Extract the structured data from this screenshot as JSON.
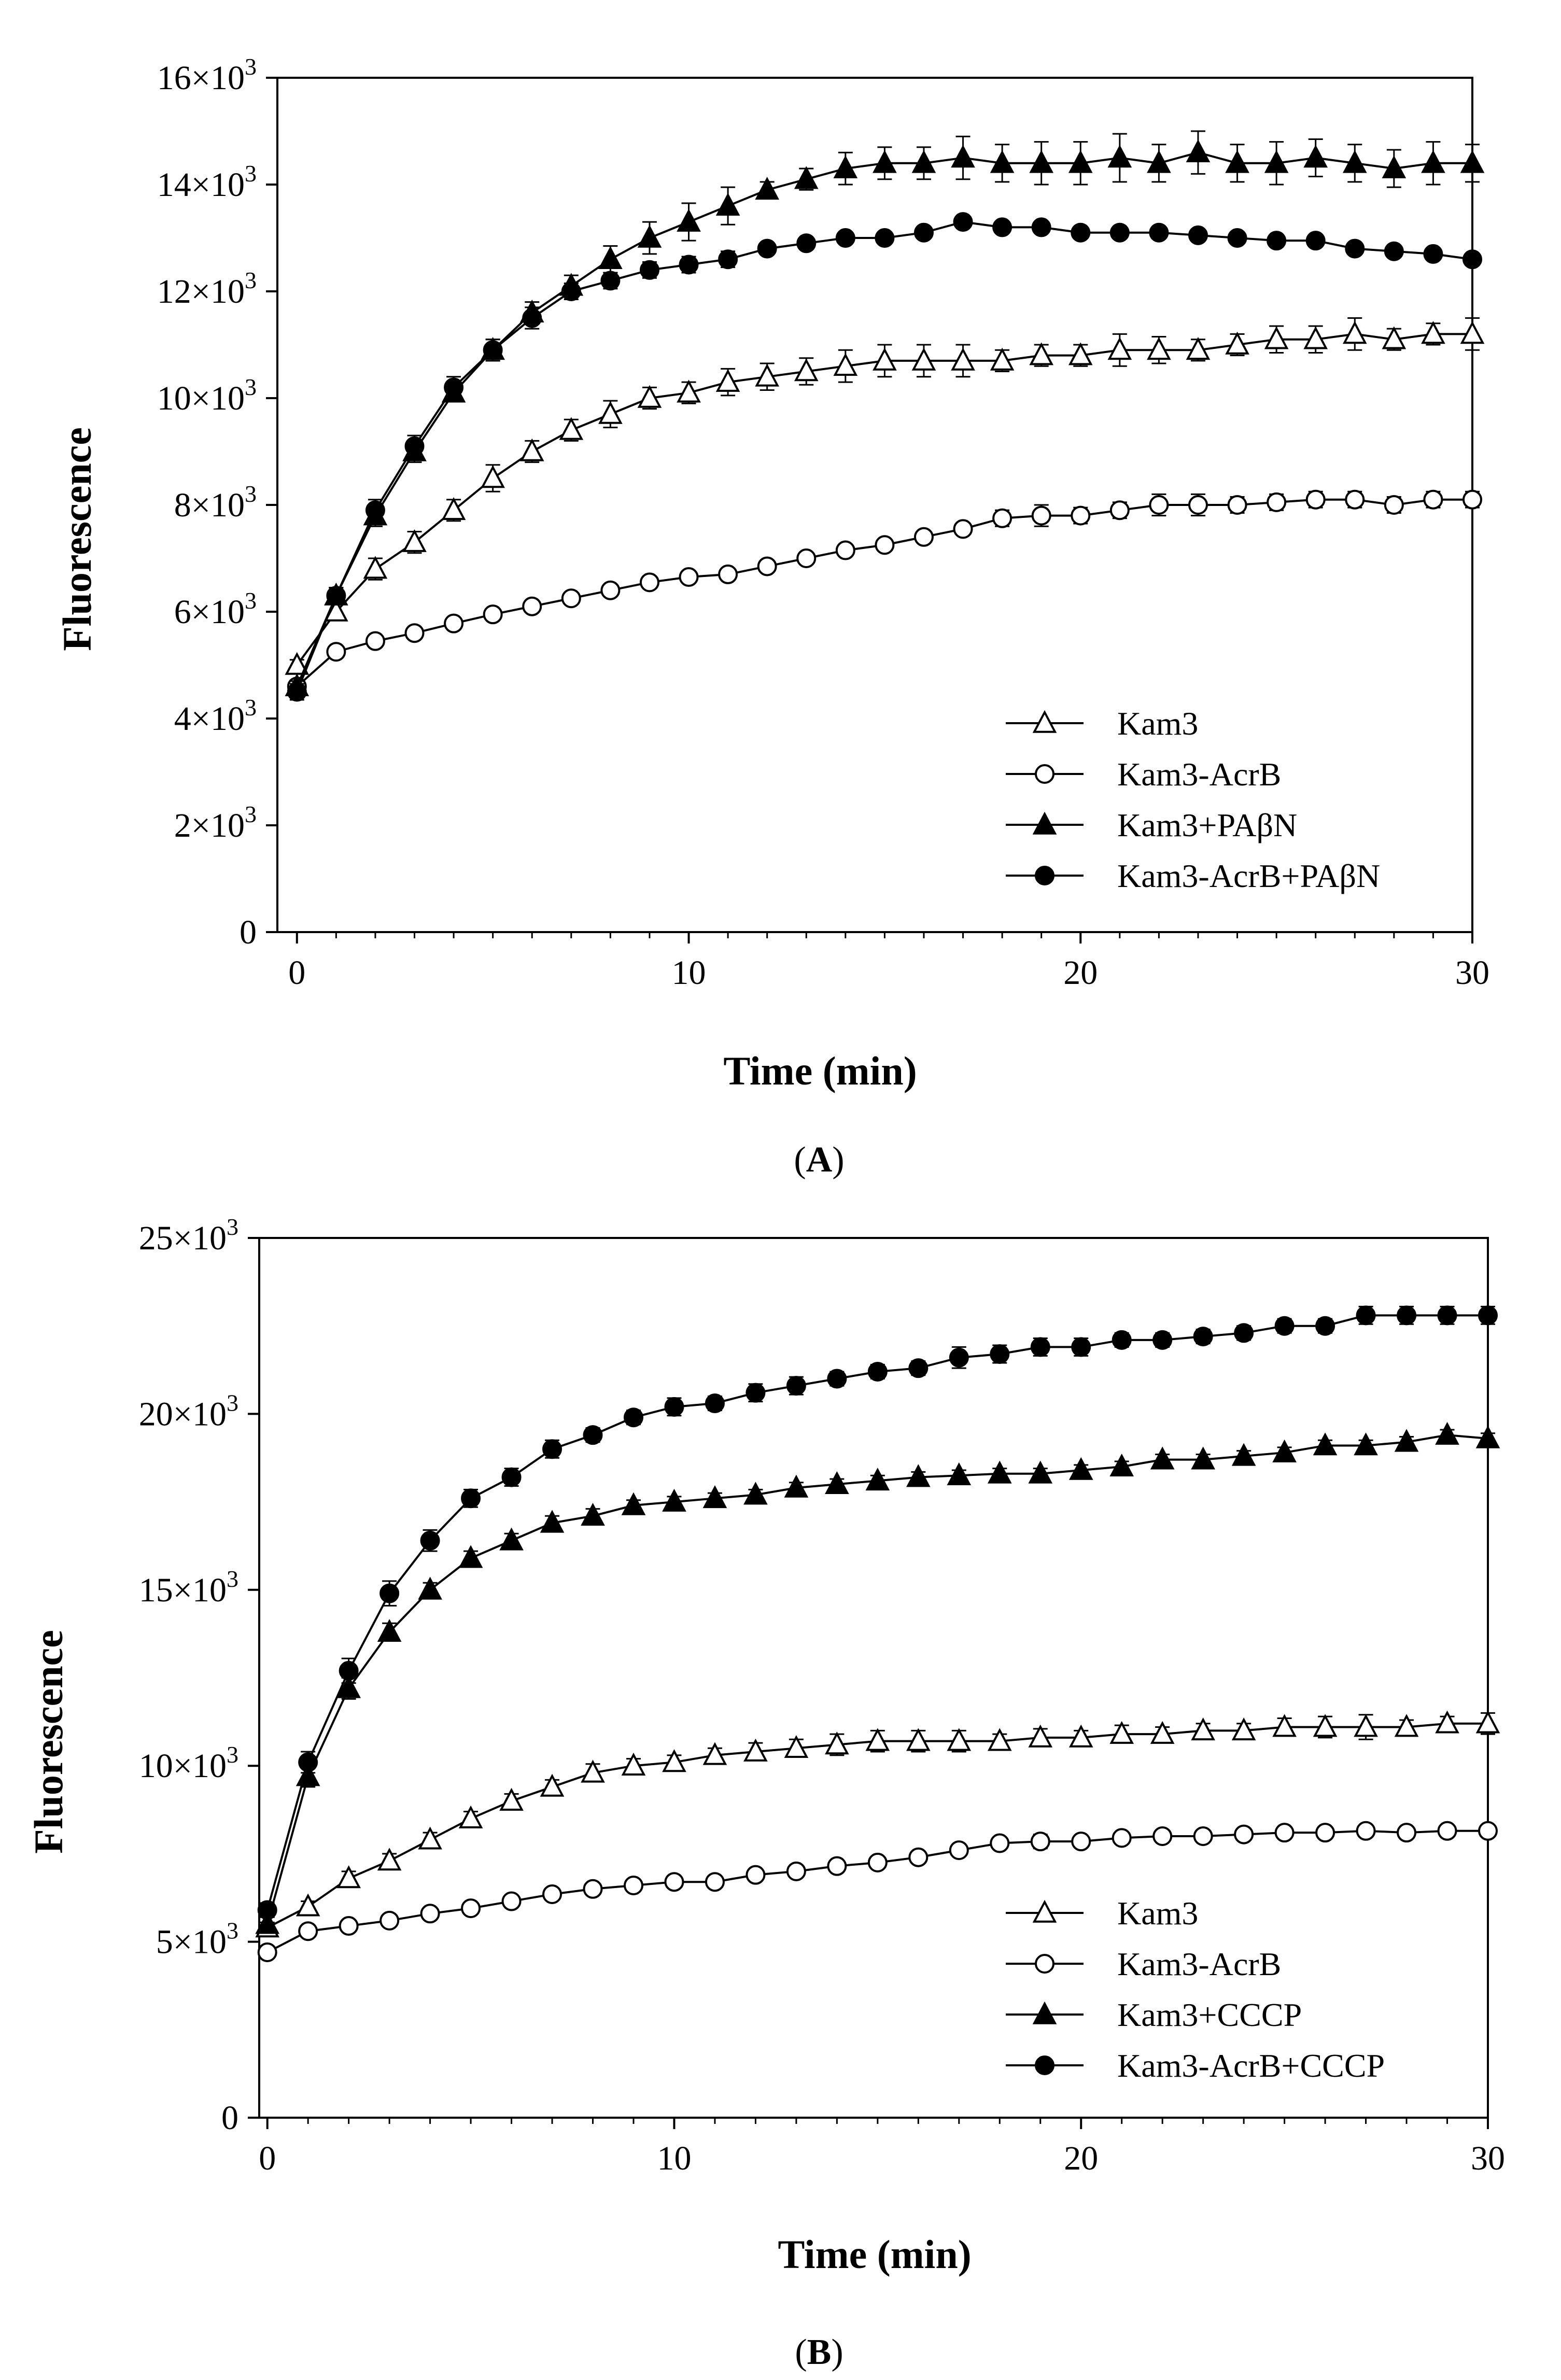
{
  "figure": {
    "panels": [
      {
        "label_open": "(",
        "label_letter": "A",
        "label_close": ")"
      },
      {
        "label_open": "(",
        "label_letter": "B",
        "label_close": ")"
      }
    ]
  },
  "chart_data": [
    {
      "type": "line",
      "xlabel": "Time (min)",
      "ylabel": "Fluorescence",
      "xlim": [
        -0.5,
        30
      ],
      "ylim": [
        0,
        16000
      ],
      "x_ticks": [
        0,
        10,
        20,
        30
      ],
      "x_tick_labels": [
        "0",
        "10",
        "20",
        "30"
      ],
      "y_ticks": [
        0,
        2000,
        4000,
        6000,
        8000,
        10000,
        12000,
        14000,
        16000
      ],
      "y_tick_labels": [
        {
          "base": "0",
          "exp": ""
        },
        {
          "base": "2×10",
          "exp": "3"
        },
        {
          "base": "4×10",
          "exp": "3"
        },
        {
          "base": "6×10",
          "exp": "3"
        },
        {
          "base": "8×10",
          "exp": "3"
        },
        {
          "base": "10×10",
          "exp": "3"
        },
        {
          "base": "12×10",
          "exp": "3"
        },
        {
          "base": "14×10",
          "exp": "3"
        },
        {
          "base": "16×10",
          "exp": "3"
        }
      ],
      "grid": false,
      "legend_position": "bottom-right",
      "x": [
        0,
        1,
        2,
        3,
        4,
        5,
        6,
        7,
        8,
        9,
        10,
        11,
        12,
        13,
        14,
        15,
        16,
        17,
        18,
        19,
        20,
        21,
        22,
        23,
        24,
        25,
        26,
        27,
        28,
        29,
        30
      ],
      "series": [
        {
          "name": "Kam3",
          "marker": "triangle",
          "fill": "open",
          "values": [
            5000,
            6000,
            6800,
            7300,
            7900,
            8500,
            9000,
            9400,
            9700,
            10000,
            10100,
            10300,
            10400,
            10500,
            10600,
            10700,
            10700,
            10700,
            10700,
            10800,
            10800,
            10900,
            10900,
            10900,
            11000,
            11100,
            11100,
            11200,
            11100,
            11200,
            11200
          ],
          "errors": [
            100,
            150,
            200,
            200,
            200,
            250,
            200,
            200,
            250,
            200,
            200,
            250,
            250,
            250,
            300,
            300,
            300,
            300,
            200,
            200,
            200,
            300,
            250,
            200,
            200,
            250,
            250,
            300,
            200,
            200,
            300
          ]
        },
        {
          "name": "Kam3-AcrB",
          "marker": "circle",
          "fill": "open",
          "values": [
            4600,
            5250,
            5450,
            5600,
            5780,
            5950,
            6100,
            6250,
            6400,
            6550,
            6650,
            6700,
            6850,
            7000,
            7150,
            7250,
            7400,
            7550,
            7750,
            7800,
            7800,
            7900,
            8000,
            8000,
            8000,
            8050,
            8100,
            8100,
            8000,
            8100,
            8100
          ],
          "errors": [
            100,
            100,
            100,
            100,
            100,
            100,
            100,
            100,
            100,
            100,
            100,
            100,
            100,
            100,
            100,
            100,
            100,
            100,
            150,
            200,
            150,
            150,
            200,
            200,
            150,
            150,
            150,
            150,
            150,
            150,
            150
          ]
        },
        {
          "name": "Kam3+PAβN",
          "marker": "triangle",
          "fill": "filled",
          "values": [
            4600,
            6300,
            7800,
            9000,
            10100,
            10900,
            11600,
            12100,
            12600,
            13000,
            13300,
            13600,
            13900,
            14100,
            14300,
            14400,
            14400,
            14500,
            14400,
            14400,
            14400,
            14500,
            14400,
            14600,
            14400,
            14400,
            14500,
            14400,
            14300,
            14400,
            14400
          ],
          "errors": [
            100,
            150,
            200,
            200,
            150,
            200,
            200,
            200,
            250,
            300,
            350,
            350,
            150,
            200,
            300,
            300,
            300,
            400,
            350,
            400,
            400,
            450,
            350,
            400,
            350,
            400,
            350,
            350,
            350,
            400,
            350
          ]
        },
        {
          "name": "Kam3-AcrB+PAβN",
          "marker": "circle",
          "fill": "filled",
          "values": [
            4500,
            6300,
            7900,
            9100,
            10200,
            10900,
            11500,
            12000,
            12200,
            12400,
            12500,
            12600,
            12800,
            12900,
            13000,
            13000,
            13100,
            13300,
            13200,
            13200,
            13100,
            13100,
            13100,
            13050,
            13000,
            12950,
            12950,
            12800,
            12750,
            12700,
            12600
          ],
          "errors": [
            150,
            150,
            200,
            200,
            200,
            200,
            200,
            150,
            150,
            150,
            150,
            150,
            100,
            100,
            100,
            100,
            100,
            100,
            100,
            100,
            100,
            100,
            100,
            100,
            100,
            100,
            100,
            100,
            100,
            100,
            100
          ]
        }
      ]
    },
    {
      "type": "line",
      "xlabel": "Time (min)",
      "ylabel": "Fluorescence",
      "xlim": [
        -0.2,
        30
      ],
      "ylim": [
        0,
        25000
      ],
      "x_ticks": [
        0,
        10,
        20,
        30
      ],
      "x_tick_labels": [
        "0",
        "10",
        "20",
        "30"
      ],
      "y_ticks": [
        0,
        5000,
        10000,
        15000,
        20000,
        25000
      ],
      "y_tick_labels": [
        {
          "base": "0",
          "exp": ""
        },
        {
          "base": "5×10",
          "exp": "3"
        },
        {
          "base": "10×10",
          "exp": "3"
        },
        {
          "base": "15×10",
          "exp": "3"
        },
        {
          "base": "20×10",
          "exp": "3"
        },
        {
          "base": "25×10",
          "exp": "3"
        }
      ],
      "grid": false,
      "legend_position": "bottom-right",
      "x": [
        0,
        1,
        2,
        3,
        4,
        5,
        6,
        7,
        8,
        9,
        10,
        11,
        12,
        13,
        14,
        15,
        16,
        17,
        18,
        19,
        20,
        21,
        22,
        23,
        24,
        25,
        26,
        27,
        28,
        29,
        30
      ],
      "series": [
        {
          "name": "Kam3",
          "marker": "triangle",
          "fill": "open",
          "values": [
            5400,
            6000,
            6800,
            7300,
            7900,
            8500,
            9000,
            9400,
            9800,
            10000,
            10100,
            10300,
            10400,
            10500,
            10600,
            10700,
            10700,
            10700,
            10700,
            10800,
            10800,
            10900,
            10900,
            11000,
            11000,
            11100,
            11100,
            11100,
            11100,
            11200,
            11200
          ],
          "errors": [
            150,
            150,
            200,
            200,
            200,
            200,
            200,
            200,
            250,
            200,
            200,
            200,
            250,
            250,
            300,
            300,
            300,
            300,
            200,
            250,
            200,
            250,
            200,
            200,
            200,
            250,
            300,
            350,
            200,
            200,
            300
          ]
        },
        {
          "name": "Kam3-AcrB",
          "marker": "circle",
          "fill": "open",
          "values": [
            4700,
            5300,
            5450,
            5600,
            5800,
            5950,
            6150,
            6350,
            6500,
            6600,
            6700,
            6700,
            6900,
            7000,
            7150,
            7250,
            7400,
            7600,
            7800,
            7850,
            7850,
            7950,
            8000,
            8000,
            8050,
            8100,
            8100,
            8150,
            8100,
            8150,
            8150
          ],
          "errors": [
            100,
            100,
            100,
            100,
            100,
            100,
            100,
            100,
            100,
            100,
            100,
            100,
            100,
            100,
            100,
            100,
            100,
            100,
            150,
            200,
            150,
            150,
            150,
            150,
            150,
            150,
            150,
            150,
            150,
            150,
            150
          ]
        },
        {
          "name": "Kam3+CCCP",
          "marker": "triangle",
          "fill": "filled",
          "values": [
            5500,
            9700,
            12200,
            13800,
            15000,
            15900,
            16400,
            16900,
            17100,
            17400,
            17500,
            17600,
            17700,
            17900,
            18000,
            18100,
            18200,
            18250,
            18300,
            18300,
            18400,
            18500,
            18700,
            18700,
            18800,
            18900,
            19100,
            19100,
            19200,
            19400,
            19300
          ],
          "errors": [
            200,
            300,
            300,
            250,
            200,
            200,
            200,
            200,
            200,
            150,
            150,
            150,
            150,
            150,
            150,
            150,
            150,
            150,
            150,
            150,
            150,
            150,
            150,
            150,
            150,
            150,
            150,
            150,
            150,
            150,
            150
          ]
        },
        {
          "name": "Kam3-AcrB+CCCP",
          "marker": "circle",
          "fill": "filled",
          "values": [
            5900,
            10100,
            12700,
            14900,
            16400,
            17600,
            18200,
            19000,
            19400,
            19900,
            20200,
            20300,
            20600,
            20800,
            21000,
            21200,
            21300,
            21600,
            21700,
            21900,
            21900,
            22100,
            22100,
            22200,
            22300,
            22500,
            22500,
            22800,
            22800,
            22800,
            22800
          ],
          "errors": [
            200,
            300,
            350,
            350,
            300,
            250,
            250,
            250,
            200,
            200,
            250,
            200,
            250,
            250,
            200,
            200,
            200,
            300,
            250,
            250,
            250,
            200,
            200,
            200,
            200,
            200,
            200,
            250,
            250,
            250,
            250
          ]
        }
      ]
    }
  ]
}
